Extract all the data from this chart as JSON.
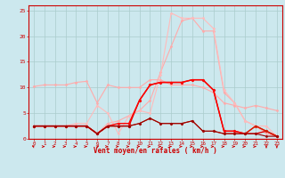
{
  "xlabel": "Vent moyen/en rafales ( km/h )",
  "background_color": "#cce8ee",
  "grid_color": "#aacccc",
  "x_ticks": [
    0,
    1,
    2,
    3,
    4,
    5,
    6,
    7,
    8,
    9,
    10,
    11,
    12,
    13,
    14,
    15,
    16,
    17,
    18,
    19,
    20,
    21,
    22,
    23
  ],
  "ylim": [
    0,
    26
  ],
  "xlim": [
    -0.5,
    23.5
  ],
  "yticks": [
    0,
    5,
    10,
    15,
    20,
    25
  ],
  "series": [
    {
      "y": [
        10.2,
        10.5,
        10.5,
        10.5,
        11.0,
        11.2,
        7.0,
        10.5,
        10.0,
        10.0,
        10.0,
        11.5,
        11.5,
        10.5,
        10.5,
        10.5,
        10.0,
        9.0,
        7.0,
        6.5,
        6.0,
        6.5,
        6.0,
        5.5
      ],
      "color": "#ffaaaa",
      "marker": "D",
      "markersize": 1.5,
      "linewidth": 0.8
    },
    {
      "y": [
        2.5,
        2.5,
        2.5,
        2.5,
        2.5,
        2.5,
        1.0,
        3.0,
        3.5,
        4.5,
        5.5,
        7.5,
        13.0,
        18.0,
        23.0,
        23.5,
        21.0,
        21.0,
        9.0,
        7.0,
        3.5,
        2.5,
        1.0,
        0.5
      ],
      "color": "#ffaaaa",
      "marker": "D",
      "markersize": 1.5,
      "linewidth": 0.8
    },
    {
      "y": [
        2.5,
        2.5,
        2.5,
        2.5,
        3.0,
        3.0,
        6.5,
        5.0,
        1.0,
        4.5,
        5.5,
        5.0,
        12.5,
        24.5,
        23.5,
        23.5,
        23.5,
        21.5,
        9.5,
        7.0,
        3.5,
        2.5,
        2.5,
        0.5
      ],
      "color": "#ffbbbb",
      "marker": "D",
      "markersize": 1.5,
      "linewidth": 0.8
    },
    {
      "y": [
        2.5,
        2.5,
        2.5,
        2.5,
        2.5,
        2.5,
        1.0,
        2.5,
        2.5,
        2.5,
        7.5,
        10.5,
        11.0,
        11.0,
        11.0,
        11.5,
        11.5,
        9.5,
        1.5,
        1.5,
        1.0,
        1.0,
        1.5,
        0.5
      ],
      "color": "#dd0000",
      "marker": "D",
      "markersize": 1.5,
      "linewidth": 1.0
    },
    {
      "y": [
        2.5,
        2.5,
        2.5,
        2.5,
        2.5,
        2.5,
        1.0,
        2.5,
        3.0,
        3.0,
        7.5,
        10.5,
        11.0,
        11.0,
        11.0,
        11.5,
        11.5,
        9.5,
        1.5,
        1.5,
        1.0,
        2.5,
        1.5,
        0.5
      ],
      "color": "#ff0000",
      "marker": "D",
      "markersize": 1.5,
      "linewidth": 1.0
    },
    {
      "y": [
        2.5,
        2.5,
        2.5,
        2.5,
        2.5,
        2.5,
        1.0,
        2.5,
        2.5,
        2.5,
        3.0,
        4.0,
        3.0,
        3.0,
        3.0,
        3.5,
        1.5,
        1.5,
        1.0,
        1.0,
        1.0,
        2.5,
        1.5,
        0.5
      ],
      "color": "#cc2200",
      "marker": "D",
      "markersize": 1.5,
      "linewidth": 0.8
    },
    {
      "y": [
        2.5,
        2.5,
        2.5,
        2.5,
        2.5,
        2.5,
        1.0,
        2.5,
        2.5,
        2.5,
        3.0,
        4.0,
        3.0,
        3.0,
        3.0,
        3.5,
        1.5,
        1.5,
        1.0,
        1.0,
        1.0,
        1.0,
        0.5,
        0.5
      ],
      "color": "#990000",
      "marker": "D",
      "markersize": 1.5,
      "linewidth": 0.8
    }
  ],
  "wind_x": [
    0,
    1,
    2,
    3,
    4,
    5,
    6,
    7,
    8,
    9,
    10,
    11,
    12,
    13,
    14,
    15,
    16,
    17,
    18,
    19,
    20,
    21,
    22,
    23
  ],
  "wind_angles": [
    225,
    90,
    90,
    90,
    90,
    90,
    135,
    90,
    90,
    90,
    75,
    90,
    90,
    90,
    90,
    90,
    90,
    90,
    90,
    90,
    90,
    90,
    0,
    0
  ]
}
